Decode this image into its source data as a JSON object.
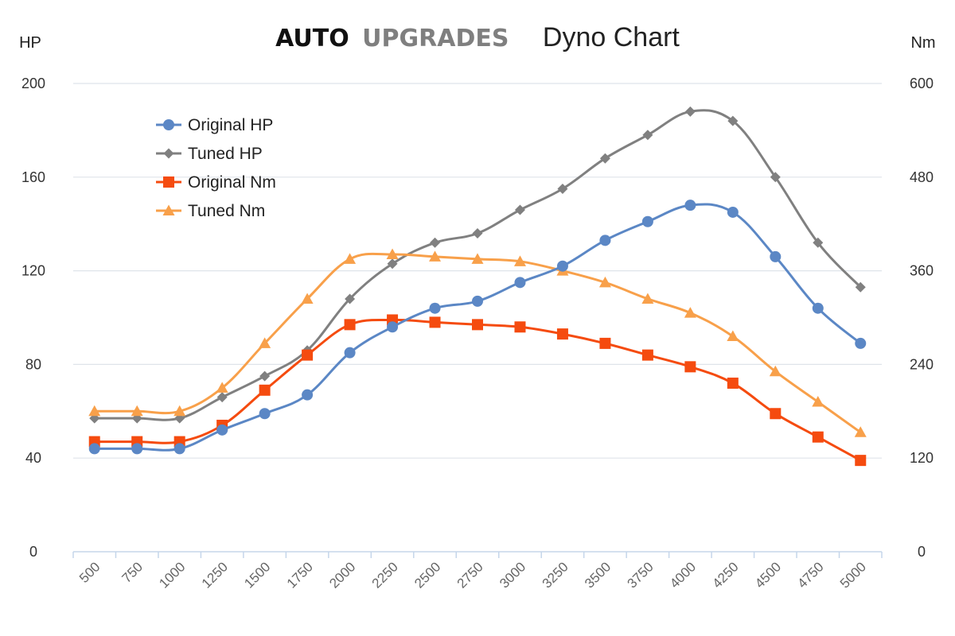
{
  "header": {
    "brand_part1": "AUTO",
    "brand_part2": "UPGRADES",
    "title": "Dyno Chart"
  },
  "colors": {
    "original_hp": "#5b87c5",
    "tuned_hp": "#808080",
    "original_nm": "#f54b0f",
    "tuned_nm": "#f8a04a",
    "brand_auto": "#111111",
    "brand_upgrades": "#7f7f7f",
    "grid": "#dfe4ea",
    "axis": "#c5d6ea"
  },
  "chart_data": {
    "type": "line",
    "title": "Dyno Chart",
    "xlabel": "",
    "ylabel": "HP",
    "y2label": "Nm",
    "categories": [
      "500",
      "750",
      "1000",
      "1250",
      "1500",
      "1750",
      "2000",
      "2250",
      "2500",
      "2750",
      "3000",
      "3250",
      "3500",
      "3750",
      "4000",
      "4250",
      "4500",
      "4750",
      "5000"
    ],
    "ylim": [
      0,
      200
    ],
    "y2lim": [
      0,
      600
    ],
    "yticks": [
      "0",
      "40",
      "80",
      "120",
      "160",
      "200"
    ],
    "y2ticks": [
      "0",
      "120",
      "240",
      "360",
      "480",
      "600"
    ],
    "grid": true,
    "legend_position": "top-left",
    "series": [
      {
        "name": "Original HP",
        "axis": "left",
        "marker": "circle",
        "color_key": "original_hp",
        "values": [
          44,
          44,
          44,
          52,
          59,
          67,
          85,
          96,
          104,
          107,
          115,
          122,
          133,
          141,
          148,
          145,
          126,
          104,
          89
        ]
      },
      {
        "name": "Tuned HP",
        "axis": "left",
        "marker": "diamond",
        "color_key": "tuned_hp",
        "values": [
          57,
          57,
          57,
          66,
          75,
          86,
          108,
          123,
          132,
          136,
          146,
          155,
          168,
          178,
          188,
          184,
          160,
          132,
          113
        ]
      },
      {
        "name": "Original Nm",
        "axis": "right",
        "marker": "square",
        "color_key": "original_nm",
        "values": [
          141,
          141,
          141,
          162,
          207,
          252,
          291,
          297,
          294,
          291,
          288,
          279,
          267,
          252,
          237,
          216,
          177,
          147,
          117
        ]
      },
      {
        "name": "Tuned Nm",
        "axis": "right",
        "marker": "triangle",
        "color_key": "tuned_nm",
        "values": [
          180,
          180,
          180,
          210,
          267,
          324,
          375,
          381,
          378,
          375,
          372,
          360,
          345,
          324,
          306,
          276,
          231,
          192,
          153
        ]
      }
    ]
  }
}
